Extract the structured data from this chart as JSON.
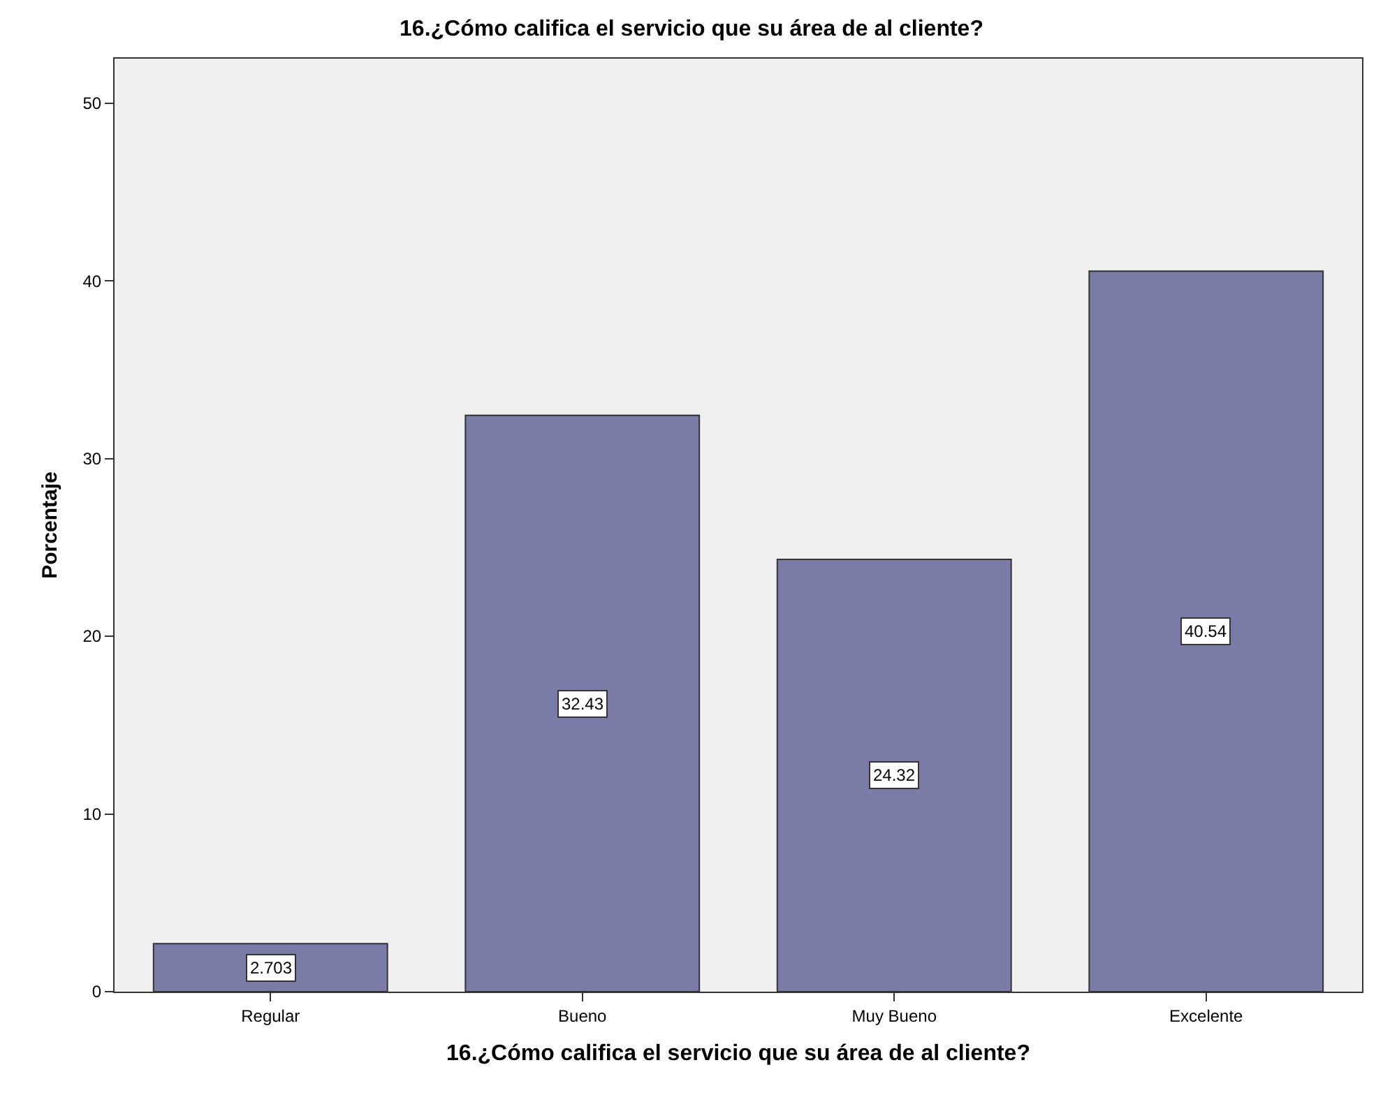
{
  "chart_data": {
    "type": "bar",
    "title": "16.¿Cómo califica el servicio que su área de al cliente?",
    "xlabel": "16.¿Cómo califica el servicio que su área de al cliente?",
    "ylabel": "Porcentaje",
    "categories": [
      "Regular",
      "Bueno",
      "Muy Bueno",
      "Excelente"
    ],
    "values": [
      2.703,
      32.43,
      24.32,
      40.54
    ],
    "color": "#7b7ba8",
    "ylim": [
      0,
      52.5
    ],
    "yticks": [
      0,
      10,
      20,
      30,
      40,
      50
    ],
    "data_labels": true
  }
}
